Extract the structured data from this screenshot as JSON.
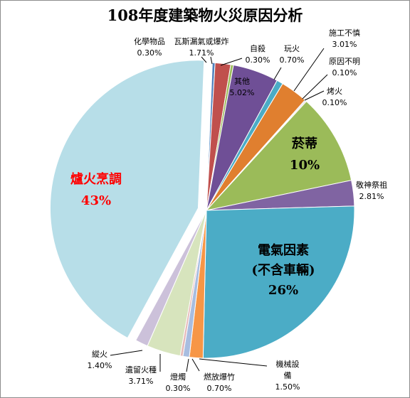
{
  "chart_data": {
    "type": "pie",
    "title": "108年度建築物火災原因分析",
    "slices": [
      {
        "name": "化學物品",
        "value_label": "0.30%",
        "value": 0.3,
        "color": "#4f81bd"
      },
      {
        "name": "瓦斯漏氣或爆炸",
        "value_label": "1.71%",
        "value": 1.71,
        "color": "#c0504d"
      },
      {
        "name": "自殺",
        "value_label": "0.30%",
        "value": 0.3,
        "color": "#9bbb59"
      },
      {
        "name": "其他",
        "value_label": "5.02%",
        "value": 5.02,
        "color": "#6f4f96"
      },
      {
        "name": "玩火",
        "value_label": "0.70%",
        "value": 0.7,
        "color": "#4bacc6"
      },
      {
        "name": "施工不慎",
        "value_label": "3.01%",
        "value": 3.01,
        "color": "#e07f2f"
      },
      {
        "name": "原因不明",
        "value_label": "0.10%",
        "value": 0.1,
        "color": "#5b7fbf"
      },
      {
        "name": "烤火",
        "value_label": "0.10%",
        "value": 0.1,
        "color": "#c0504d"
      },
      {
        "name": "菸蒂",
        "value_label": "10%",
        "value": 10.0,
        "color": "#9bbb59"
      },
      {
        "name": "敬神祭祖",
        "value_label": "2.81%",
        "value": 2.81,
        "color": "#8064a2"
      },
      {
        "name": "電氣因素(不含車輛)",
        "value_label": "26%",
        "value": 26.0,
        "color": "#4bacc6"
      },
      {
        "name": "機械設備",
        "value_label": "1.50%",
        "value": 1.5,
        "color": "#f79646"
      },
      {
        "name": "燃放爆竹",
        "value_label": "0.70%",
        "value": 0.7,
        "color": "#a8bde0"
      },
      {
        "name": "燈燭",
        "value_label": "0.30%",
        "value": 0.3,
        "color": "#e6b9b8"
      },
      {
        "name": "遺留火種",
        "value_label": "3.71%",
        "value": 3.71,
        "color": "#d7e4bd"
      },
      {
        "name": "縱火",
        "value_label": "1.40%",
        "value": 1.4,
        "color": "#ccc1da"
      },
      {
        "name": "爐火烹調",
        "value_label": "43%",
        "value": 43.0,
        "color": "#b7dee8"
      }
    ],
    "label_text": {
      "s0": "化學物品",
      "s1": "瓦斯漏氣或爆炸",
      "s2": "自殺",
      "s3": "其他",
      "s4": "玩火",
      "s5": "施工不慎",
      "s6": "原因不明",
      "s7": "烤火",
      "s8": "菸蒂",
      "s9": "敬神祭祖",
      "s10a": "電氣因素",
      "s10b": "(不含車輛)",
      "s11a": "機械設",
      "s11b": "備",
      "s12": "燃放爆竹",
      "s13": "燈燭",
      "s14": "遺留火種",
      "s15": "縱火",
      "s16": "爐火烹調"
    },
    "exploded_slice": "爐火烹調",
    "big_label_color_main": "#ff0000"
  }
}
